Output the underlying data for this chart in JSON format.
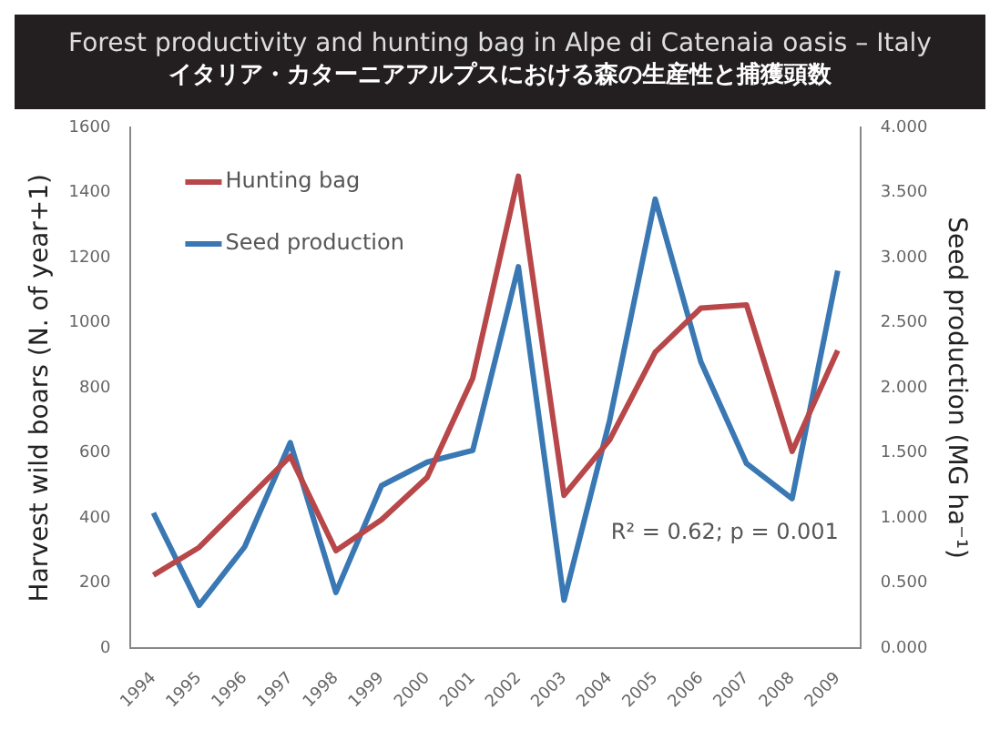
{
  "chart_data": {
    "type": "line",
    "title": "Forest productivity and hunting bag in Alpe di Catenaia oasis – Italy",
    "subtitle": "イタリア・カターニアアルプスにおける森の生産性と捕獲頭数",
    "ylabel": "Harvest wild boars (N. of year+1)",
    "y2label": "Seed production (MG ha⁻¹)",
    "categories": [
      "1994",
      "1995",
      "1996",
      "1997",
      "1998",
      "1999",
      "2000",
      "2001",
      "2002",
      "2003",
      "2004",
      "2005",
      "2006",
      "2007",
      "2008",
      "2009"
    ],
    "series": [
      {
        "name": "Hunting bag",
        "color": "#b8474a",
        "values": [
          225,
          310,
          450,
          590,
          300,
          395,
          525,
          830,
          1450,
          470,
          640,
          910,
          1045,
          1055,
          605,
          915
        ]
      },
      {
        "name": "Seed production",
        "color": "#3a78b4",
        "axis": "y2",
        "values": [
          1.04,
          0.33,
          0.78,
          1.58,
          0.43,
          1.25,
          1.43,
          1.52,
          2.93,
          0.37,
          1.75,
          3.45,
          2.2,
          1.42,
          1.15,
          2.9
        ]
      }
    ],
    "ylim": [
      0,
      1600
    ],
    "yticks": [
      0,
      200,
      400,
      600,
      800,
      1000,
      1200,
      1400,
      1600
    ],
    "y2lim": [
      0,
      4
    ],
    "y2ticks": [
      {
        "value": 0,
        "label": "0.000"
      },
      {
        "value": 0.5,
        "label": "0.500"
      },
      {
        "value": 1,
        "label": "1.000"
      },
      {
        "value": 1.5,
        "label": "1.500"
      },
      {
        "value": 2,
        "label": "2.000"
      },
      {
        "value": 2.5,
        "label": "2.500"
      },
      {
        "value": 3,
        "label": "3.000"
      },
      {
        "value": 3.5,
        "label": "3.500"
      },
      {
        "value": 4,
        "label": "4.000"
      }
    ],
    "annotations": [
      "R² = 0.62; p = 0.001"
    ],
    "legend": "top left",
    "grid": false,
    "marker": "none",
    "line_style": "solid"
  }
}
